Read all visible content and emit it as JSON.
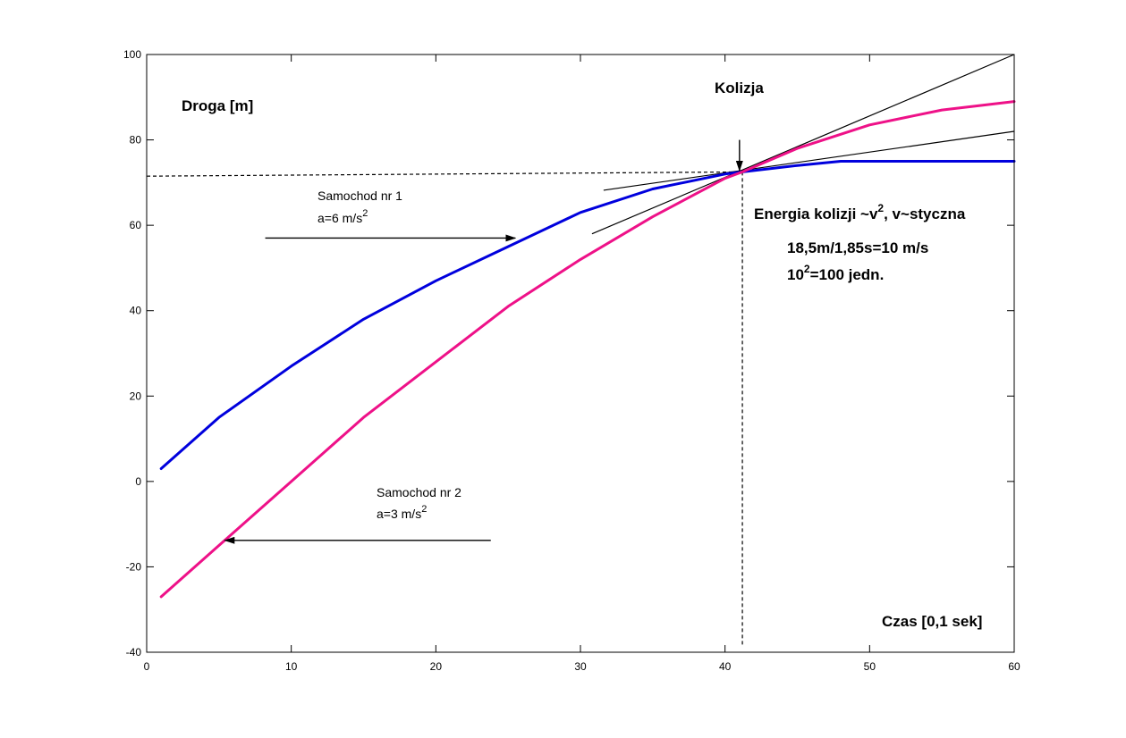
{
  "chart_data": {
    "type": "line",
    "xlim": [
      0,
      60
    ],
    "ylim": [
      -40,
      100
    ],
    "x_ticks": [
      0,
      10,
      20,
      30,
      40,
      50,
      60
    ],
    "y_ticks": [
      -40,
      -20,
      0,
      20,
      40,
      60,
      80,
      100
    ],
    "grid": false,
    "series": [
      {
        "color": "#0000dd",
        "x": [
          1,
          5,
          10,
          15,
          20,
          25,
          30,
          35,
          40,
          41.2,
          45,
          48,
          50,
          55,
          60
        ],
        "y": [
          3,
          15,
          27,
          38,
          47,
          55,
          63,
          68.5,
          72,
          72.5,
          74,
          75,
          75,
          75,
          75
        ]
      },
      {
        "color": "#ee1188",
        "x": [
          1,
          5,
          10,
          15,
          20,
          25,
          30,
          35,
          40,
          41.2,
          45,
          50,
          55,
          60
        ],
        "y": [
          -27,
          -15,
          0,
          15,
          28,
          41,
          52,
          62,
          71,
          72.5,
          78,
          83.5,
          87,
          89
        ]
      }
    ],
    "tangents": [
      {
        "x": [
          30.8,
          60
        ],
        "y": [
          58,
          100
        ]
      },
      {
        "x": [
          31.6,
          60
        ],
        "y": [
          68.2,
          82
        ]
      }
    ],
    "guides": [
      {
        "x": [
          0,
          41.2
        ],
        "y": [
          71.5,
          72.5
        ]
      },
      {
        "x": [
          41.2,
          41.2
        ],
        "y": [
          72.5,
          -38.5
        ]
      }
    ],
    "arrows": [
      {
        "from": [
          8.2,
          57
        ],
        "to": [
          25.5,
          57
        ]
      },
      {
        "from": [
          23.8,
          -13.8
        ],
        "to": [
          5.4,
          -13.8
        ]
      },
      {
        "from": [
          41,
          80
        ],
        "to": [
          41,
          72.8
        ]
      }
    ]
  },
  "annotations": {
    "ylabel": "Droga [m]",
    "xlabel": "Czas [0,1 sek]",
    "collision": "Kolizja",
    "car1_name": "Samochod nr 1",
    "car1_accel": "a=6 m/s",
    "car1_accel_exp": "2",
    "car2_name": "Samochod nr 2",
    "car2_accel": "a=3 m/s",
    "car2_accel_exp": "2",
    "energy_pre": "Energia kolizji ~v",
    "energy_exp": "2",
    "energy_post": ", v~styczna",
    "calc_line": "18,5m/1,85s=10 m/s",
    "units_base": "10",
    "units_exp": "2",
    "units_post": "=100 jedn."
  }
}
